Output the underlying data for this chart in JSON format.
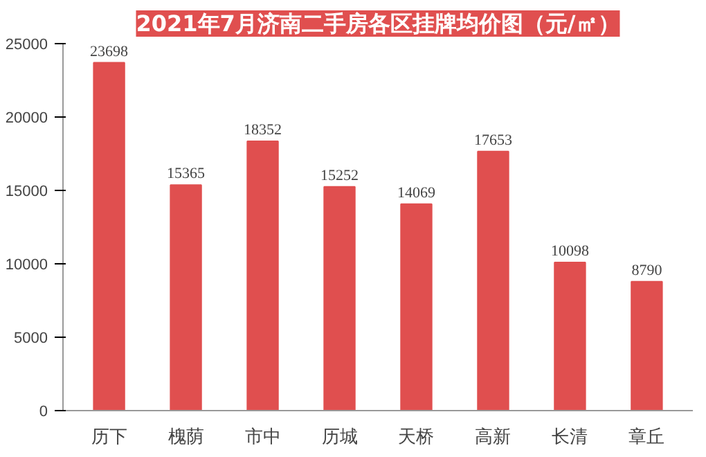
{
  "chart_data": {
    "type": "bar",
    "title": "2021年7月济南二手房各区挂牌均价图（元/㎡）",
    "categories": [
      "历下",
      "槐荫",
      "市中",
      "历城",
      "天桥",
      "高新",
      "长清",
      "章丘"
    ],
    "values": [
      23698,
      15365,
      18352,
      15252,
      14069,
      17653,
      10098,
      8790
    ],
    "color": "#e04f4f",
    "ylim": [
      0,
      25000
    ],
    "yticks": [
      0,
      5000,
      10000,
      15000,
      20000,
      25000
    ],
    "grid": false,
    "data_labels": true
  }
}
